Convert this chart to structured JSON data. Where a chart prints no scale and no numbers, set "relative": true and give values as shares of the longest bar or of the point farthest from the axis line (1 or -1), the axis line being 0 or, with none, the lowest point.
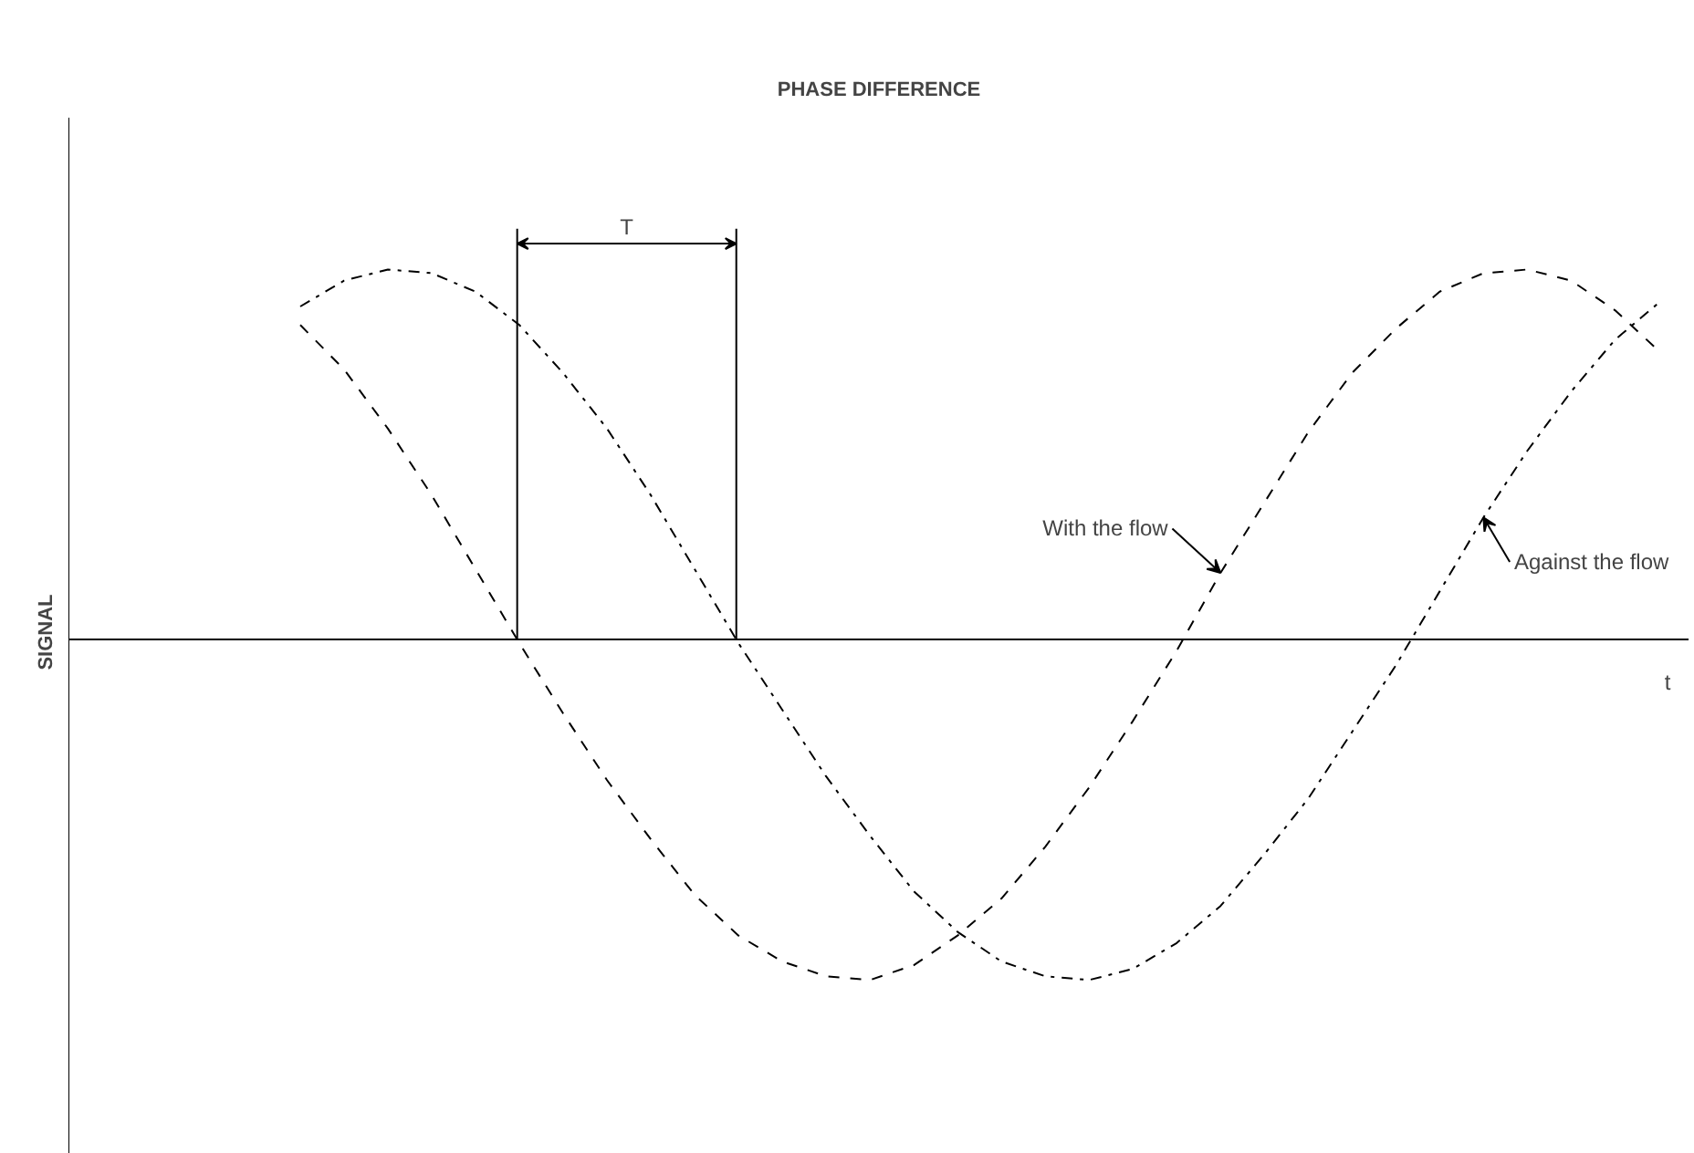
{
  "chart_data": {
    "type": "line",
    "title": "PHASE DIFFERENCE",
    "xlabel": "t",
    "ylabel": "SIGNAL",
    "relative": true,
    "grid": false,
    "legend": false,
    "annotations": [
      "T"
    ],
    "categories": [
      null,
      null,
      null,
      null,
      null,
      null,
      null,
      null,
      null,
      null,
      null,
      null,
      null,
      null,
      null,
      null,
      null,
      null,
      null,
      null,
      null,
      null,
      null,
      null,
      null,
      null,
      null,
      null,
      null,
      null,
      null,
      null,
      null,
      null,
      null,
      null,
      null
    ],
    "series": [
      {
        "name": "With the flow",
        "color": "#000000",
        "line_style": "dashed",
        "values": [
          null,
          null,
          null,
          null,
          null,
          0.85,
          0.73,
          0.57,
          0.39,
          0.19,
          -0.01,
          -0.2,
          -0.38,
          -0.54,
          -0.69,
          -0.8,
          -0.87,
          -0.91,
          -0.92,
          -0.88,
          -0.8,
          -0.7,
          -0.56,
          -0.4,
          -0.22,
          -0.03,
          0.18,
          0.37,
          0.56,
          0.72,
          0.84,
          0.94,
          0.99,
          1.0,
          0.97,
          0.89,
          0.78
        ]
      },
      {
        "name": "Against the flow",
        "color": "#000000",
        "line_style": "dashdot",
        "values": [
          null,
          null,
          null,
          null,
          null,
          0.9,
          0.97,
          1.0,
          0.99,
          0.94,
          0.85,
          0.72,
          0.57,
          0.39,
          0.19,
          -0.01,
          -0.19,
          -0.37,
          -0.53,
          -0.68,
          -0.79,
          -0.87,
          -0.91,
          -0.92,
          -0.89,
          -0.82,
          -0.72,
          -0.58,
          -0.43,
          -0.25,
          -0.07,
          0.13,
          0.33,
          0.51,
          0.67,
          0.81,
          0.91
        ]
      }
    ]
  }
}
